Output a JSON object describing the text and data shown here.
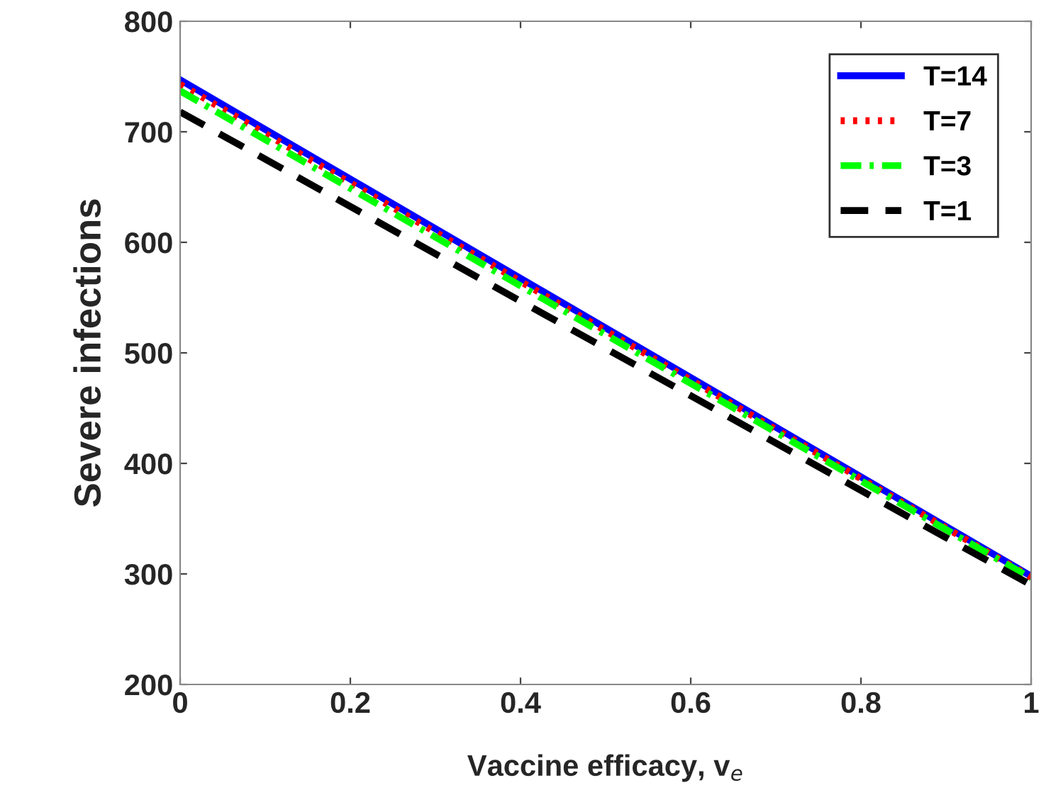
{
  "chart_data": {
    "type": "line",
    "xlabel": "Vaccine efficacy, v$_{e}$",
    "ylabel": "Severe infections",
    "x": [
      0,
      1
    ],
    "series": [
      {
        "name": "T=14",
        "color": "#0000ff",
        "line_style": "solid",
        "values": [
          747,
          298
        ]
      },
      {
        "name": "T=7",
        "color": "#ff0000",
        "line_style": "dotted",
        "values": [
          743,
          297
        ]
      },
      {
        "name": "T=3",
        "color": "#00ff00",
        "line_style": "dashdot",
        "values": [
          737,
          296
        ]
      },
      {
        "name": "T=1",
        "color": "#000000",
        "line_style": "dashed",
        "values": [
          718,
          290
        ]
      }
    ],
    "xlim": [
      0,
      1
    ],
    "ylim": [
      200,
      800
    ],
    "xticks": [
      0,
      0.2,
      0.4,
      0.6,
      0.8,
      1
    ],
    "yticks": [
      200,
      300,
      400,
      500,
      600,
      700,
      800
    ],
    "grid": false,
    "legend": "top right",
    "marker": "none"
  }
}
